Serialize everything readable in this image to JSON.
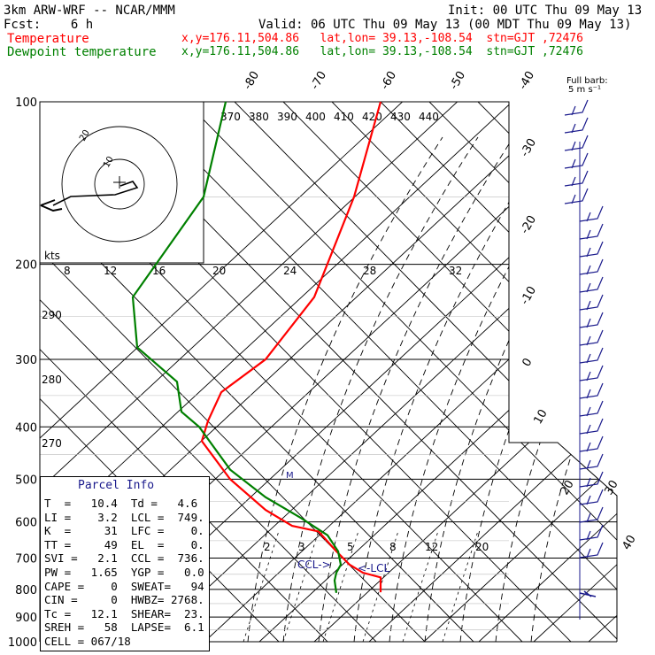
{
  "header": {
    "model": "3km ARW-WRF -- NCAR/MMM",
    "init": "Init: 00 UTC Thu 09 May 13",
    "fcst": "Fcst:    6 h",
    "valid": "Valid: 06 UTC Thu 09 May 13 (00 MDT Thu 09 May 13)",
    "legend": [
      {
        "name": "Temperature",
        "location": "x,y=176.11,504.86   lat,lon= 39.13,-108.54  stn=GJT ,72476",
        "color": "#ff0000"
      },
      {
        "name": "Dewpoint temperature",
        "location": "x,y=176.11,504.86   lat,lon= 39.13,-108.54  stn=GJT ,72476",
        "color": "#008000"
      }
    ]
  },
  "chart_data": {
    "type": "line",
    "title": "",
    "ylabel": "",
    "pressure_ticks": [
      100,
      200,
      300,
      400,
      500,
      600,
      700,
      800,
      900,
      1000
    ],
    "pressure_tick_labels": [
      "100",
      "200",
      "300",
      "400",
      "500",
      "600",
      "700",
      "800",
      "900",
      "1000"
    ],
    "isotherm_labels": [
      "-80",
      "-70",
      "-60",
      "-50",
      "-40",
      "-30",
      "-20",
      "-10",
      "0",
      "10",
      "20",
      "30",
      "40"
    ],
    "theta_labels_top": [
      "370",
      "380",
      "390",
      "400",
      "410",
      "420",
      "430",
      "440"
    ],
    "theta_labels_left": [
      "290",
      "280",
      "270"
    ],
    "mixing_ratio_labels": [
      "2",
      "3",
      "5",
      "8",
      "12",
      "20"
    ],
    "scale_labels": [
      "kts",
      "8",
      "12",
      "16",
      "20",
      "24",
      "28",
      "32"
    ],
    "hodograph_ring_labels": [
      "20",
      "10"
    ],
    "barb_legend": "Full barb:\n5 m s⁻¹",
    "annotations": [
      "CCL->",
      "<-LCL",
      "M"
    ],
    "series": [
      {
        "name": "Temperature",
        "color": "#ff0000",
        "points": [
          [
            430,
            100
          ],
          [
            400,
            150
          ],
          [
            355,
            230
          ],
          [
            300,
            300
          ],
          [
            250,
            345
          ],
          [
            235,
            390
          ],
          [
            228,
            425
          ],
          [
            260,
            500
          ],
          [
            300,
            570
          ],
          [
            330,
            610
          ],
          [
            360,
            625
          ],
          [
            380,
            680
          ],
          [
            395,
            720
          ],
          [
            410,
            745
          ],
          [
            430,
            760
          ],
          [
            430,
            810
          ]
        ]
      },
      {
        "name": "Dewpoint temperature",
        "color": "#008000",
        "points": [
          [
            255,
            100
          ],
          [
            230,
            150
          ],
          [
            150,
            230
          ],
          [
            155,
            285
          ],
          [
            200,
            330
          ],
          [
            205,
            375
          ],
          [
            225,
            400
          ],
          [
            260,
            480
          ],
          [
            300,
            540
          ],
          [
            340,
            590
          ],
          [
            370,
            635
          ],
          [
            382,
            680
          ],
          [
            385,
            720
          ],
          [
            380,
            745
          ],
          [
            378,
            770
          ],
          [
            380,
            812
          ]
        ]
      }
    ],
    "wind_barbs": [
      {
        "level": 1,
        "angle": 20
      },
      {
        "level": 2,
        "angle": 30
      }
    ]
  },
  "parcel_info": {
    "title": "Parcel Info",
    "rows": [
      "T  =   10.4  Td =   4.6",
      "LI =    3.2  LCL =  749.",
      "K  =     31  LFC =    0.",
      "TT =     49  EL  =    0.",
      "SVI =   2.1  CCL =  736.",
      "PW =   1.65  YGP =   0.0",
      "CAPE =    0  SWEAT=   94",
      "CIN =     0  HWBZ= 2768.",
      "Tc =   12.1  SHEAR=  23.",
      "SREH =   58  LAPSE=  6.1",
      "CELL = 067/18"
    ]
  }
}
